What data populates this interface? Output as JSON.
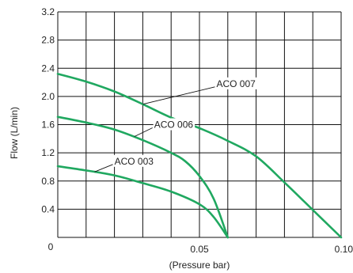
{
  "chart_data": {
    "type": "line",
    "xlabel": "(Pressure bar)",
    "ylabel": "Flow (L/min)",
    "xlim": [
      0,
      0.1
    ],
    "ylim": [
      0,
      3.2
    ],
    "x_tick_labels": [
      {
        "value": 0,
        "label": "0"
      },
      {
        "value": 0.05,
        "label": "0.05"
      },
      {
        "value": 0.1,
        "label": "0.10"
      }
    ],
    "y_tick_labels": [
      {
        "value": 0.4,
        "label": "0.4"
      },
      {
        "value": 0.8,
        "label": "0.8"
      },
      {
        "value": 1.2,
        "label": "1.2"
      },
      {
        "value": 1.6,
        "label": "1.6"
      },
      {
        "value": 2.0,
        "label": "2.0"
      },
      {
        "value": 2.4,
        "label": "2.4"
      },
      {
        "value": 2.8,
        "label": "2.8"
      },
      {
        "value": 3.2,
        "label": "3.2"
      }
    ],
    "grid": true,
    "grid_x_step": 0.01,
    "grid_y_step": 0.4,
    "line_color": "#20a860",
    "series": [
      {
        "name": "ACO 007",
        "points": [
          [
            0,
            2.32
          ],
          [
            0.01,
            2.21
          ],
          [
            0.02,
            2.07
          ],
          [
            0.03,
            1.89
          ],
          [
            0.04,
            1.7
          ],
          [
            0.05,
            1.55
          ],
          [
            0.06,
            1.37
          ],
          [
            0.07,
            1.15
          ],
          [
            0.08,
            0.78
          ],
          [
            0.09,
            0.39
          ],
          [
            0.1,
            0.0
          ]
        ]
      },
      {
        "name": "ACO 006",
        "points": [
          [
            0,
            1.71
          ],
          [
            0.01,
            1.63
          ],
          [
            0.02,
            1.53
          ],
          [
            0.03,
            1.38
          ],
          [
            0.04,
            1.2
          ],
          [
            0.045,
            1.08
          ],
          [
            0.05,
            0.87
          ],
          [
            0.055,
            0.55
          ],
          [
            0.06,
            0.0
          ]
        ]
      },
      {
        "name": "ACO 003",
        "points": [
          [
            0,
            1.01
          ],
          [
            0.01,
            0.95
          ],
          [
            0.02,
            0.88
          ],
          [
            0.03,
            0.77
          ],
          [
            0.04,
            0.65
          ],
          [
            0.05,
            0.47
          ],
          [
            0.055,
            0.29
          ],
          [
            0.06,
            0.0
          ]
        ]
      }
    ],
    "annotations": [
      {
        "text": "ACO 007",
        "series": "ACO 007",
        "at": [
          0.03,
          1.89
        ],
        "label_at": [
          0.056,
          2.18
        ]
      },
      {
        "text": "ACO 006",
        "series": "ACO 006",
        "at": [
          0.027,
          1.43
        ],
        "label_at": [
          0.034,
          1.6
        ]
      },
      {
        "text": "ACO 003",
        "series": "ACO 003",
        "at": [
          0.013,
          0.93
        ],
        "label_at": [
          0.02,
          1.08
        ]
      }
    ]
  }
}
